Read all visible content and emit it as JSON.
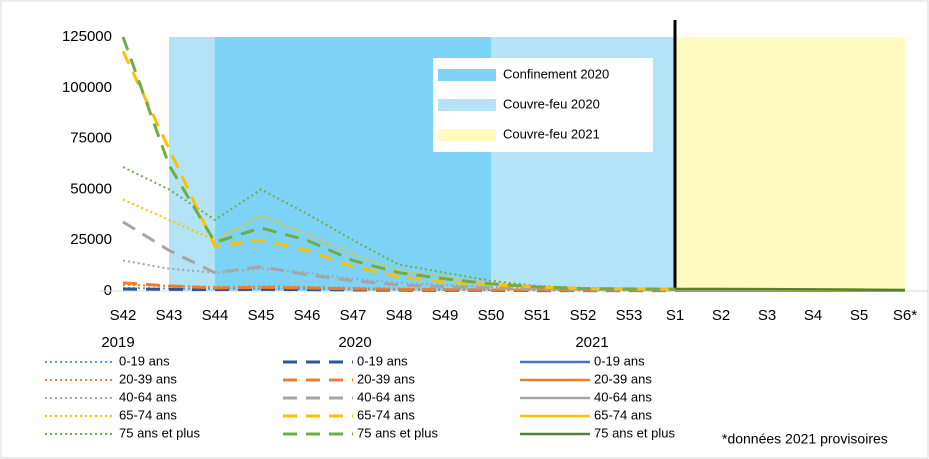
{
  "chart_data": {
    "type": "line",
    "categories": [
      "S42",
      "S43",
      "S44",
      "S45",
      "S46",
      "S47",
      "S48",
      "S49",
      "S50",
      "S51",
      "S52",
      "S53",
      "S1",
      "S2",
      "S3",
      "S4",
      "S5",
      "S6*"
    ],
    "ylim": [
      0,
      125000
    ],
    "yticks": [
      0,
      25000,
      50000,
      75000,
      100000,
      125000
    ],
    "divider": "S1",
    "regions": [
      {
        "name": "Couvre-feu 2020",
        "start": "S43",
        "end": "S1",
        "color": "#b3e3f7"
      },
      {
        "name": "Confinement 2020",
        "start": "S44",
        "end": "S50",
        "color": "#7dd3f5"
      },
      {
        "name": "Couvre-feu 2021",
        "start": "S1",
        "end": "S6*",
        "color": "#fffbc0"
      }
    ],
    "series_groups": [
      {
        "name": "2019",
        "dash": "dotted",
        "series": [
          {
            "name": "0-19 ans",
            "color": "#5b9bd5",
            "values": [
              1500,
              1200,
              1000,
              1200,
              1000,
              800,
              600,
              500,
              400,
              300,
              300,
              300,
              300,
              null,
              null,
              null,
              null,
              null
            ]
          },
          {
            "name": "20-39 ans",
            "color": "#ed7d31",
            "values": [
              3000,
              2500,
              2000,
              2300,
              2000,
              1500,
              1200,
              900,
              700,
              500,
              400,
              400,
              400,
              null,
              null,
              null,
              null,
              null
            ]
          },
          {
            "name": "40-64 ans",
            "color": "#a5a5a5",
            "values": [
              15000,
              11000,
              9000,
              11000,
              9000,
              6000,
              4000,
              3000,
              2000,
              1500,
              1000,
              800,
              700,
              null,
              null,
              null,
              null,
              null
            ]
          },
          {
            "name": "65-74 ans",
            "color": "#ffc000",
            "values": [
              45000,
              35000,
              25000,
              37000,
              28000,
              18000,
              10000,
              7000,
              4000,
              2000,
              1500,
              1200,
              1000,
              null,
              null,
              null,
              null,
              null
            ]
          },
          {
            "name": "75 ans et plus",
            "color": "#70ad47",
            "values": [
              61000,
              50000,
              35000,
              50000,
              38000,
              25000,
              13000,
              9000,
              5000,
              2500,
              1500,
              1200,
              1000,
              null,
              null,
              null,
              null,
              null
            ]
          }
        ]
      },
      {
        "name": "2020",
        "dash": "dashed",
        "series": [
          {
            "name": "0-19 ans",
            "color": "#2e5597",
            "values": [
              1000,
              800,
              700,
              800,
              700,
              500,
              400,
              300,
              300,
              200,
              200,
              200,
              200,
              null,
              null,
              null,
              null,
              null
            ]
          },
          {
            "name": "20-39 ans",
            "color": "#ed7d31",
            "values": [
              4000,
              2500,
              1500,
              1800,
              1500,
              1000,
              800,
              600,
              500,
              400,
              300,
              300,
              300,
              null,
              null,
              null,
              null,
              null
            ]
          },
          {
            "name": "40-64 ans",
            "color": "#a5a5a5",
            "values": [
              34000,
              20000,
              9000,
              12000,
              8000,
              5000,
              3000,
              2000,
              1500,
              1000,
              800,
              700,
              600,
              null,
              null,
              null,
              null,
              null
            ]
          },
          {
            "name": "65-74 ans",
            "color": "#ffc000",
            "values": [
              118000,
              70000,
              22000,
              25000,
              20000,
              12000,
              7000,
              4500,
              3000,
              2000,
              1200,
              1000,
              900,
              null,
              null,
              null,
              null,
              null
            ]
          },
          {
            "name": "75 ans et plus",
            "color": "#70ad47",
            "values": [
              125000,
              62000,
              24000,
              31000,
              25000,
              15000,
              9000,
              6000,
              3500,
              2000,
              1200,
              1000,
              900,
              null,
              null,
              null,
              null,
              null
            ]
          }
        ]
      },
      {
        "name": "2021",
        "dash": "solid",
        "series": [
          {
            "name": "0-19 ans",
            "color": "#4472c4",
            "values": [
              null,
              null,
              null,
              null,
              null,
              null,
              null,
              null,
              null,
              null,
              null,
              null,
              200,
              200,
              200,
              150,
              150,
              100
            ]
          },
          {
            "name": "20-39 ans",
            "color": "#ed7d31",
            "values": [
              null,
              null,
              null,
              null,
              null,
              null,
              null,
              null,
              null,
              null,
              null,
              null,
              300,
              300,
              250,
              250,
              200,
              150
            ]
          },
          {
            "name": "40-64 ans",
            "color": "#a5a5a5",
            "values": [
              null,
              null,
              null,
              null,
              null,
              null,
              null,
              null,
              null,
              null,
              null,
              null,
              600,
              600,
              500,
              500,
              400,
              300
            ]
          },
          {
            "name": "65-74 ans",
            "color": "#ffc000",
            "values": [
              null,
              null,
              null,
              null,
              null,
              null,
              null,
              null,
              null,
              null,
              null,
              null,
              900,
              900,
              800,
              700,
              600,
              400
            ]
          },
          {
            "name": "75 ans et plus",
            "color": "#548235",
            "values": [
              null,
              null,
              null,
              null,
              null,
              null,
              null,
              null,
              null,
              null,
              null,
              null,
              1000,
              1000,
              900,
              800,
              700,
              500
            ]
          }
        ]
      }
    ],
    "footnote": "*données 2021 provisoires"
  }
}
